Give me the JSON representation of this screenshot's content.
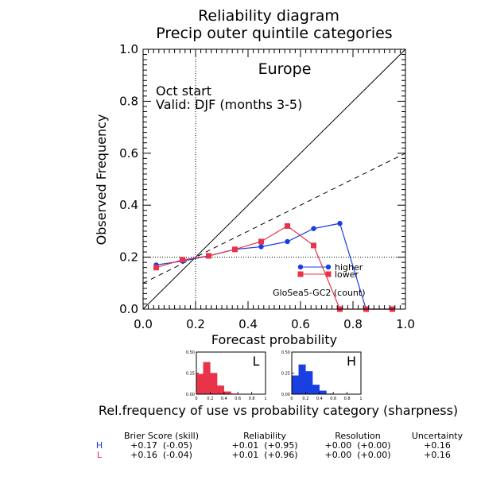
{
  "title": "Reliability diagram",
  "subtitle": "Precip outer quintile categories",
  "region": "Europe",
  "start": "Oct start",
  "valid": "Valid: DJF (months 3-5)",
  "xlabel": "Forecast probability",
  "ylabel": "Observed Frequency",
  "model_label": "GloSea5-GC2 (count)",
  "legend": {
    "higher": "higher",
    "lower": "lower"
  },
  "sharpness_caption": "Rel.frequency of use vs probability category (sharpness)",
  "colors": {
    "higher": "#1a3fe0",
    "lower": "#e8334a",
    "axes": "#000000"
  },
  "chart_data": [
    {
      "type": "line",
      "title": "Reliability diagram",
      "xlabel": "Forecast probability",
      "ylabel": "Observed Frequency",
      "xlim": [
        0.0,
        1.0
      ],
      "ylim": [
        0.0,
        1.0
      ],
      "xticks": [
        0.0,
        0.2,
        0.4,
        0.6,
        0.8,
        1.0
      ],
      "yticks": [
        0.0,
        0.2,
        0.4,
        0.6,
        0.8,
        1.0
      ],
      "tick_labels": [
        "0.0",
        "0.2",
        "0.4",
        "0.6",
        "0.8",
        "1.0"
      ],
      "reference_lines": [
        {
          "kind": "diagonal",
          "points": [
            [
              0,
              0
            ],
            [
              1,
              1
            ]
          ],
          "style": "solid"
        },
        {
          "kind": "skill",
          "points": [
            [
              0,
              0.1
            ],
            [
              1,
              0.6
            ]
          ],
          "style": "dashed"
        },
        {
          "kind": "climatology",
          "x": 0.2,
          "style": "dotted"
        },
        {
          "kind": "climatology",
          "y": 0.2,
          "style": "dotted"
        }
      ],
      "series": [
        {
          "name": "higher",
          "color": "#1a3fe0",
          "marker": "circle",
          "x": [
            0.05,
            0.15,
            0.25,
            0.35,
            0.45,
            0.55,
            0.65,
            0.75,
            0.85,
            0.95
          ],
          "y": [
            0.17,
            0.185,
            0.205,
            0.23,
            0.24,
            0.26,
            0.31,
            0.33,
            0.0,
            0.0
          ]
        },
        {
          "name": "lower",
          "color": "#e8334a",
          "marker": "square",
          "x": [
            0.05,
            0.15,
            0.25,
            0.35,
            0.45,
            0.55,
            0.65,
            0.75,
            0.85,
            0.95
          ],
          "y": [
            0.16,
            0.19,
            0.205,
            0.23,
            0.26,
            0.32,
            0.245,
            0.0,
            0.0,
            0.0
          ]
        }
      ]
    },
    {
      "type": "bar",
      "label": "L",
      "color": "#e8334a",
      "x": [
        0.05,
        0.15,
        0.25,
        0.35,
        0.45,
        0.55,
        0.65,
        0.75,
        0.85,
        0.95
      ],
      "values": [
        0.24,
        0.38,
        0.25,
        0.1,
        0.03,
        0.005,
        0.0,
        0.0,
        0.0,
        0.0
      ],
      "ylim": [
        0.0,
        0.5
      ],
      "yticks": [
        "0.00",
        "0.25",
        "0.50"
      ],
      "xticks": [
        "0",
        "0.2",
        "0.4",
        "0.6",
        "0.8",
        "1"
      ]
    },
    {
      "type": "bar",
      "label": "H",
      "color": "#1a3fe0",
      "x": [
        0.05,
        0.15,
        0.25,
        0.35,
        0.45,
        0.55,
        0.65,
        0.75,
        0.85,
        0.95
      ],
      "values": [
        0.22,
        0.35,
        0.27,
        0.11,
        0.04,
        0.005,
        0.0,
        0.0,
        0.0,
        0.0
      ],
      "ylim": [
        0.0,
        0.5
      ],
      "yticks": [
        "0.00",
        "0.25",
        "0.50"
      ],
      "xticks": [
        "0",
        "0.2",
        "0.4",
        "0.6",
        "0.8",
        "1"
      ]
    },
    {
      "type": "table",
      "columns": [
        "",
        "Brier Score (skill)",
        "Reliability",
        "Resolution",
        "Uncertainty"
      ],
      "rows": [
        {
          "key": "H",
          "color": "#1a3fe0",
          "brier": "+0.17  (-0.05)",
          "reliability": "+0.01  (+0.95)",
          "resolution": "+0.00  (+0.00)",
          "uncertainty": "+0.16"
        },
        {
          "key": "L",
          "color": "#e8334a",
          "brier": "+0.16  (-0.04)",
          "reliability": "+0.01  (+0.96)",
          "resolution": "+0.00  (+0.00)",
          "uncertainty": "+0.16"
        }
      ]
    }
  ]
}
